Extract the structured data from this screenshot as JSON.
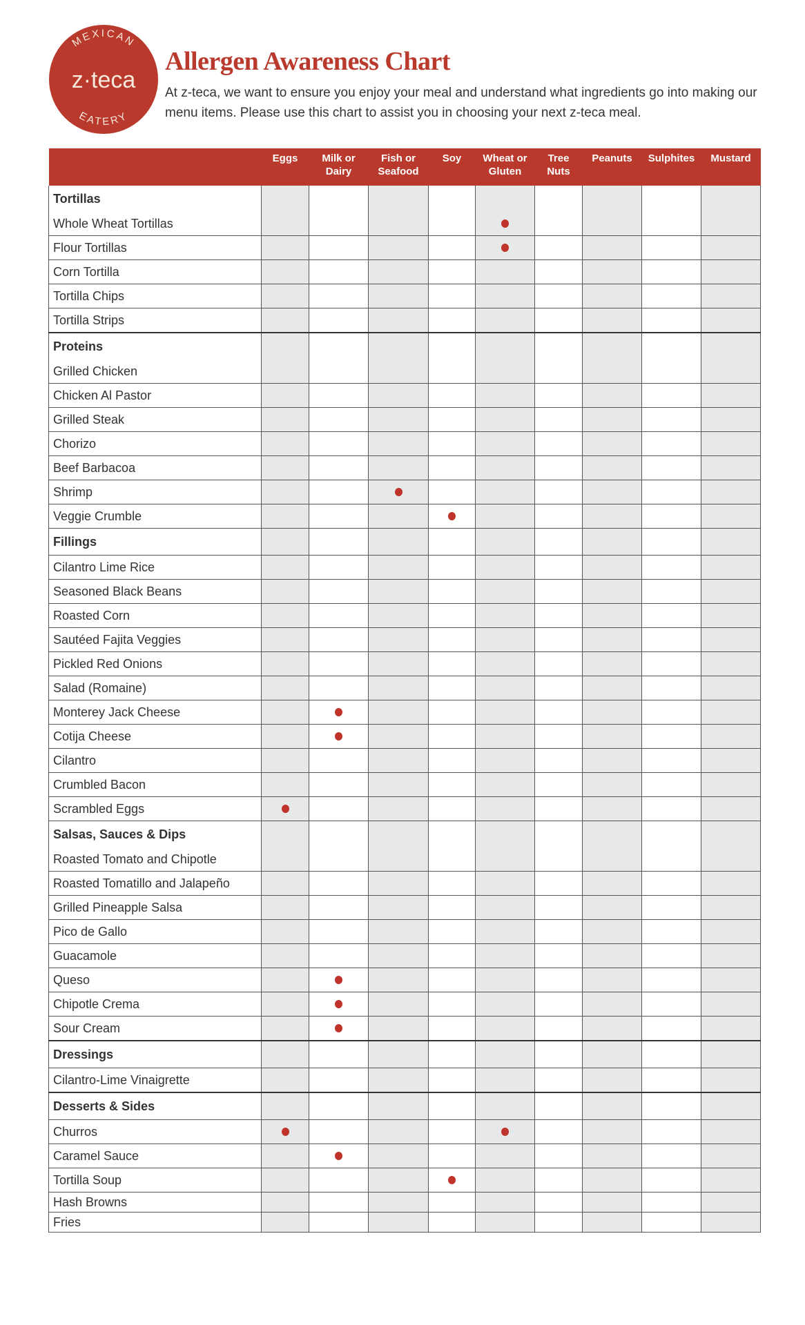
{
  "logo": {
    "top_text": "MEXICAN",
    "brand": "z·teca",
    "bottom_text": "EATERY"
  },
  "title": "Allergen Awareness Chart",
  "description": "At z-teca, we want to ensure you enjoy your meal and understand what ingredients go into making our menu items. Please use this chart to assist you in choosing your next z-teca meal.",
  "colors": {
    "brand_red": "#b93a2c",
    "dot": "#c0332a",
    "shaded_column": "#e7e8e8"
  },
  "columns": [
    "Eggs",
    "Milk or Dairy",
    "Fish or Seafood",
    "Soy",
    "Wheat or Gluten",
    "Tree Nuts",
    "Peanuts",
    "Sulphites",
    "Mustard"
  ],
  "sections": [
    {
      "name": "Tortillas",
      "items": [
        {
          "name": "Whole Wheat Tortillas",
          "allergens": [
            "Wheat or Gluten"
          ]
        },
        {
          "name": "Flour Tortillas",
          "allergens": [
            "Wheat or Gluten"
          ]
        },
        {
          "name": "Corn Tortilla",
          "allergens": []
        },
        {
          "name": "Tortilla Chips",
          "allergens": []
        },
        {
          "name": "Tortilla Strips",
          "allergens": []
        }
      ]
    },
    {
      "name": "Proteins",
      "items": [
        {
          "name": "Grilled Chicken",
          "allergens": []
        },
        {
          "name": "Chicken Al Pastor",
          "allergens": []
        },
        {
          "name": "Grilled Steak",
          "allergens": []
        },
        {
          "name": "Chorizo",
          "allergens": []
        },
        {
          "name": "Beef Barbacoa",
          "allergens": []
        },
        {
          "name": "Shrimp",
          "allergens": [
            "Fish or Seafood"
          ]
        },
        {
          "name": "Veggie Crumble",
          "allergens": [
            "Soy"
          ]
        }
      ]
    },
    {
      "name": "Fillings",
      "items": [
        {
          "name": "Cilantro Lime Rice",
          "allergens": []
        },
        {
          "name": "Seasoned Black Beans",
          "allergens": []
        },
        {
          "name": "Roasted Corn",
          "allergens": []
        },
        {
          "name": "Sautéed Fajita Veggies",
          "allergens": []
        },
        {
          "name": "Pickled Red Onions",
          "allergens": []
        },
        {
          "name": "Salad (Romaine)",
          "allergens": []
        },
        {
          "name": "Monterey Jack Cheese",
          "allergens": [
            "Milk or Dairy"
          ]
        },
        {
          "name": "Cotija Cheese",
          "allergens": [
            "Milk or Dairy"
          ]
        },
        {
          "name": "Cilantro",
          "allergens": []
        },
        {
          "name": "Crumbled Bacon",
          "allergens": []
        },
        {
          "name": "Scrambled Eggs",
          "allergens": [
            "Eggs"
          ]
        }
      ]
    },
    {
      "name": "Salsas, Sauces & Dips",
      "items": [
        {
          "name": "Roasted Tomato and Chipotle",
          "allergens": []
        },
        {
          "name": "Roasted Tomatillo and Jalapeño",
          "allergens": []
        },
        {
          "name": "Grilled Pineapple Salsa",
          "allergens": []
        },
        {
          "name": "Pico de Gallo",
          "allergens": []
        },
        {
          "name": "Guacamole",
          "allergens": []
        },
        {
          "name": "Queso",
          "allergens": [
            "Milk or Dairy"
          ]
        },
        {
          "name": "Chipotle Crema",
          "allergens": [
            "Milk or Dairy"
          ]
        },
        {
          "name": "Sour Cream",
          "allergens": [
            "Milk or Dairy"
          ]
        }
      ]
    },
    {
      "name": "Dressings",
      "items": [
        {
          "name": "Cilantro-Lime Vinaigrette",
          "allergens": []
        }
      ]
    },
    {
      "name": "Desserts & Sides",
      "items": [
        {
          "name": "Churros",
          "allergens": [
            "Eggs",
            "Wheat or Gluten"
          ]
        },
        {
          "name": "Caramel Sauce",
          "allergens": [
            "Milk or Dairy"
          ]
        },
        {
          "name": "Tortilla Soup",
          "allergens": [
            "Soy"
          ]
        },
        {
          "name": "Hash Browns",
          "allergens": []
        },
        {
          "name": "Fries",
          "allergens": []
        }
      ]
    }
  ]
}
